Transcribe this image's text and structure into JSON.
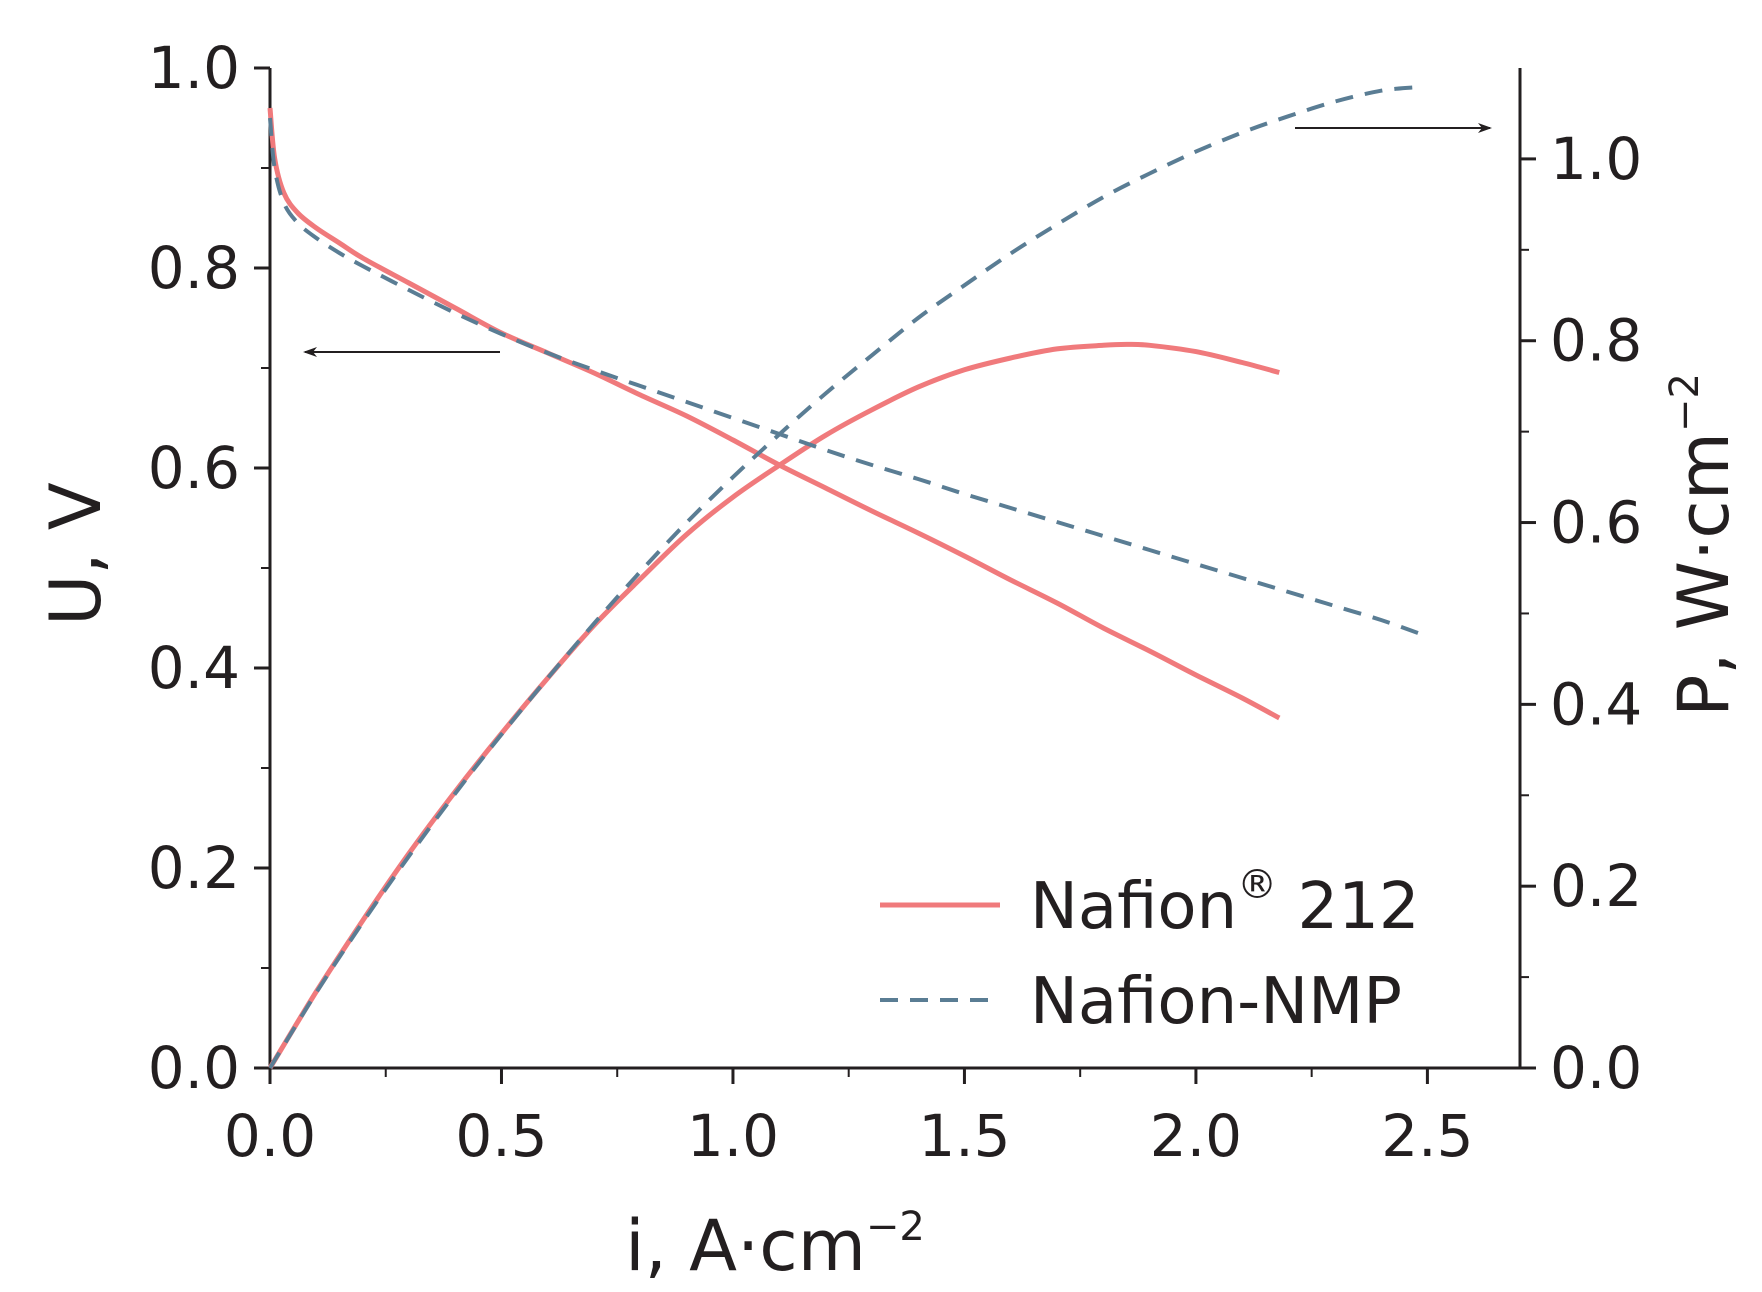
{
  "chart_data": {
    "type": "line",
    "x_axis": {
      "label": "i, A·cm",
      "label_superscript": "−2",
      "range": [
        0,
        2.7
      ],
      "ticks": [
        0,
        0.5,
        1.0,
        1.5,
        2.0,
        2.5
      ],
      "tick_labels": [
        "0.0",
        "0.5",
        "1.0",
        "1.5",
        "2.0",
        "2.5"
      ]
    },
    "y_left_axis": {
      "label": "U, V",
      "range": [
        0,
        1.0
      ],
      "ticks": [
        0,
        0.2,
        0.4,
        0.6,
        0.8,
        1.0
      ],
      "tick_labels": [
        "0.0",
        "0.2",
        "0.4",
        "0.6",
        "0.8",
        "1.0"
      ]
    },
    "y_right_axis": {
      "label": "P, W·cm",
      "label_superscript": "−2",
      "range": [
        0,
        1.1
      ],
      "ticks": [
        0,
        0.2,
        0.4,
        0.6,
        0.8,
        1.0
      ],
      "tick_labels": [
        "0.0",
        "0.2",
        "0.4",
        "0.6",
        "0.8",
        "1.0"
      ]
    },
    "series": [
      {
        "name": "Nafion® 212",
        "legend_label": "Nafion",
        "legend_superscript": "®",
        "legend_suffix": " 212",
        "color": "#f07a7c",
        "style": "solid",
        "voltage": {
          "axis": "left",
          "x": [
            0,
            0.01,
            0.03,
            0.06,
            0.1,
            0.15,
            0.2,
            0.3,
            0.4,
            0.5,
            0.6,
            0.7,
            0.8,
            0.9,
            1.0,
            1.1,
            1.2,
            1.3,
            1.4,
            1.5,
            1.6,
            1.7,
            1.8,
            1.9,
            2.0,
            2.1,
            2.18
          ],
          "y": [
            0.96,
            0.91,
            0.875,
            0.855,
            0.84,
            0.825,
            0.81,
            0.785,
            0.76,
            0.735,
            0.715,
            0.695,
            0.673,
            0.652,
            0.628,
            0.603,
            0.58,
            0.557,
            0.535,
            0.512,
            0.488,
            0.465,
            0.44,
            0.417,
            0.393,
            0.37,
            0.35
          ]
        },
        "power": {
          "axis": "right",
          "x": [
            0,
            0.1,
            0.2,
            0.3,
            0.4,
            0.5,
            0.6,
            0.7,
            0.8,
            0.9,
            1.0,
            1.1,
            1.2,
            1.3,
            1.4,
            1.5,
            1.6,
            1.7,
            1.8,
            1.85,
            1.9,
            2.0,
            2.1,
            2.18
          ],
          "y": [
            0,
            0.084,
            0.162,
            0.236,
            0.304,
            0.368,
            0.429,
            0.487,
            0.538,
            0.587,
            0.628,
            0.663,
            0.696,
            0.724,
            0.749,
            0.768,
            0.781,
            0.791,
            0.795,
            0.796,
            0.795,
            0.788,
            0.776,
            0.765
          ]
        }
      },
      {
        "name": "Nafion-NMP",
        "legend_label": "Nafion-NMP",
        "color": "#5a7d94",
        "style": "dashed",
        "voltage": {
          "axis": "left",
          "x": [
            0,
            0.01,
            0.03,
            0.06,
            0.1,
            0.15,
            0.2,
            0.3,
            0.4,
            0.5,
            0.6,
            0.7,
            0.8,
            0.9,
            1.0,
            1.1,
            1.2,
            1.3,
            1.4,
            1.5,
            1.6,
            1.7,
            1.8,
            1.9,
            2.0,
            2.1,
            2.2,
            2.3,
            2.4,
            2.48
          ],
          "y": [
            0.95,
            0.9,
            0.865,
            0.845,
            0.83,
            0.815,
            0.802,
            0.778,
            0.755,
            0.734,
            0.715,
            0.698,
            0.682,
            0.666,
            0.65,
            0.634,
            0.618,
            0.603,
            0.589,
            0.574,
            0.56,
            0.546,
            0.532,
            0.518,
            0.504,
            0.49,
            0.476,
            0.462,
            0.448,
            0.435
          ]
        },
        "power": {
          "axis": "right",
          "x": [
            0,
            0.1,
            0.2,
            0.3,
            0.4,
            0.5,
            0.6,
            0.7,
            0.8,
            0.9,
            1.0,
            1.1,
            1.2,
            1.3,
            1.4,
            1.5,
            1.6,
            1.7,
            1.8,
            1.9,
            2.0,
            2.1,
            2.2,
            2.3,
            2.4,
            2.48
          ],
          "y": [
            0,
            0.083,
            0.16,
            0.233,
            0.302,
            0.367,
            0.429,
            0.489,
            0.546,
            0.6,
            0.65,
            0.697,
            0.742,
            0.784,
            0.825,
            0.861,
            0.896,
            0.928,
            0.958,
            0.984,
            1.008,
            1.029,
            1.047,
            1.063,
            1.075,
            1.079
          ]
        }
      }
    ],
    "annotations": [
      {
        "type": "arrow",
        "direction": "left",
        "meaning": "voltage curves use left axis"
      },
      {
        "type": "arrow",
        "direction": "right",
        "meaning": "power curves use right axis"
      }
    ],
    "legend_position": "bottom-right",
    "grid": false
  }
}
